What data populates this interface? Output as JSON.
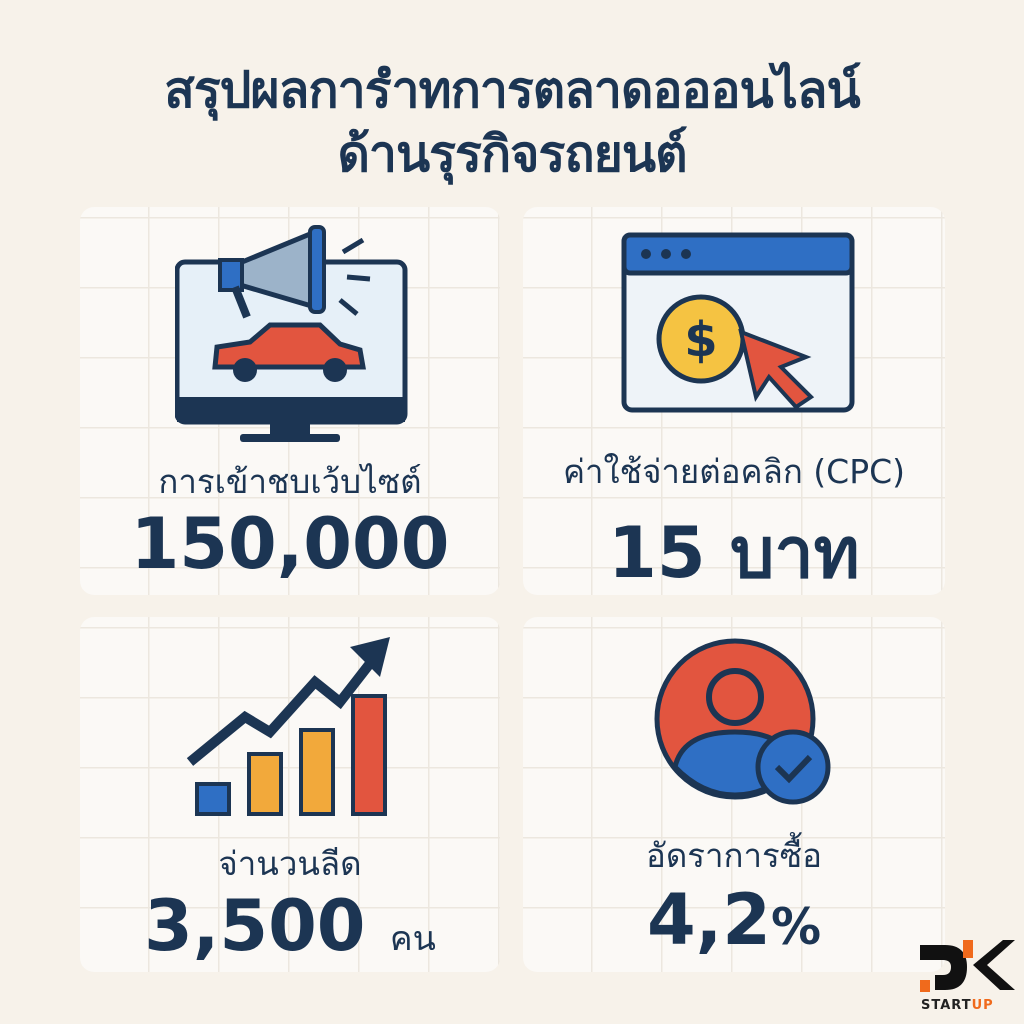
{
  "title": {
    "line1": "สรุปผลการำทการตลาดอออนไลน์",
    "line2": "ด้านรุรกิจรถยนต์"
  },
  "cards": [
    {
      "label": "การเข้าชบเว้บไซต์",
      "value": "150,000",
      "icon": "monitor-megaphone-car-icon"
    },
    {
      "label": "ค่าใช้จ่ายต่อคลิก (CPC)",
      "value": "15 บาท",
      "icon": "browser-dollar-cursor-icon"
    },
    {
      "label": "จ่านวนลีด",
      "value": "3,500",
      "unit": "คน",
      "icon": "growth-bar-chart-icon"
    },
    {
      "label": "อัดราการซื้อ",
      "value": "4,2",
      "unit": "%",
      "icon": "user-check-icon"
    }
  ],
  "logo": {
    "text": "DK STARTUP"
  },
  "colors": {
    "navy": "#1c3553",
    "red": "#e2553f",
    "blue": "#2f6fc4",
    "orange": "#f2a93b",
    "background": "#f7f2ea"
  }
}
